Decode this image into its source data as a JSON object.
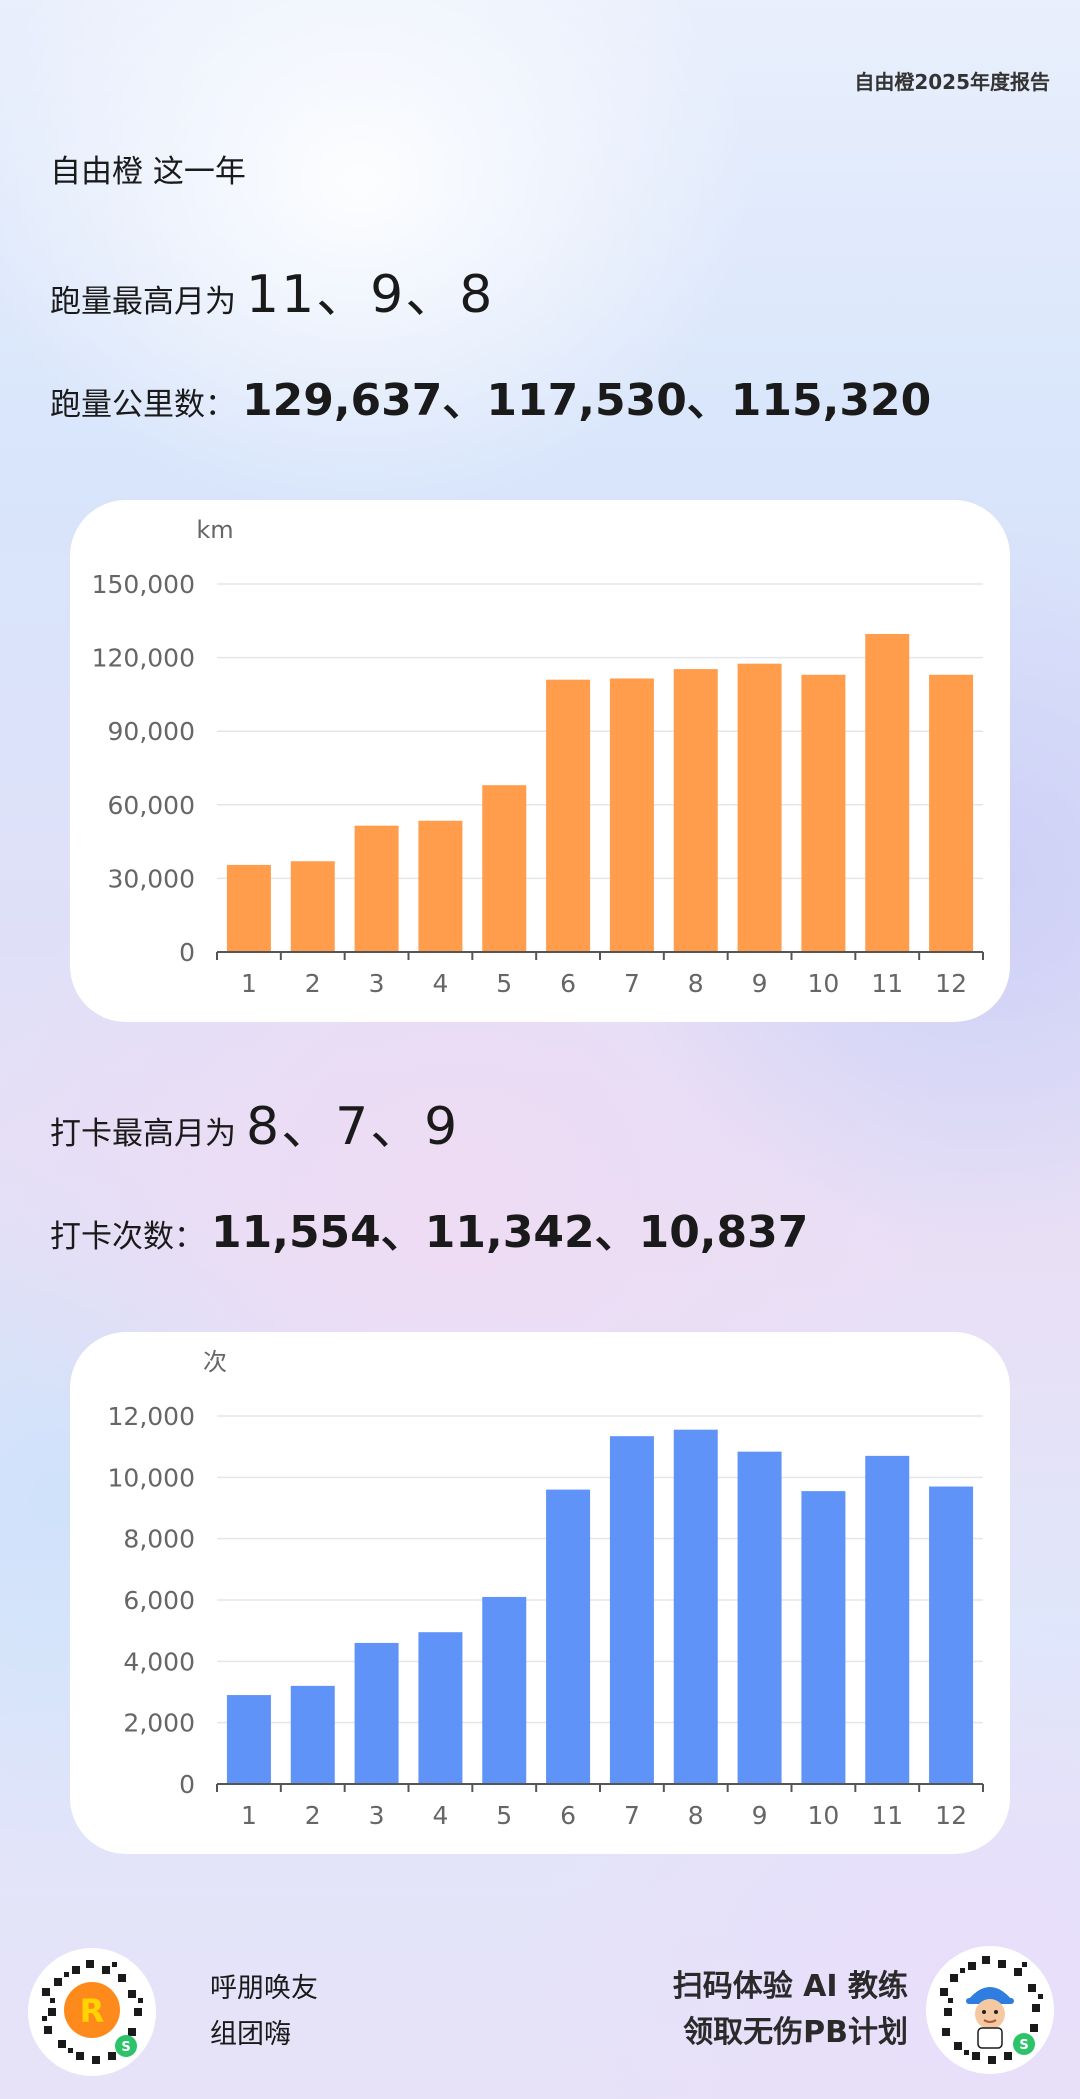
{
  "header": {
    "report_label": "自由橙2025年度报告",
    "intro": "自由橙 这一年"
  },
  "running": {
    "top_months_label": "跑量最高月为",
    "top_months_value": "11、9、8",
    "km_label": "跑量公里数：",
    "km_value": "129,637、117,530、115,320"
  },
  "checkin": {
    "top_months_label": "打卡最高月为",
    "top_months_value": "8、7、9",
    "count_label": "打卡次数：",
    "count_value": "11,554、11,342、10,837"
  },
  "chart_data": [
    {
      "type": "bar",
      "unit": "km",
      "categories": [
        "1",
        "2",
        "3",
        "4",
        "5",
        "6",
        "7",
        "8",
        "9",
        "10",
        "11",
        "12"
      ],
      "values": [
        35500,
        37000,
        51500,
        53500,
        68000,
        111000,
        111500,
        115320,
        117530,
        113000,
        129637,
        113000
      ],
      "ylim": [
        0,
        150000
      ],
      "yticks": [
        0,
        30000,
        60000,
        90000,
        120000,
        150000
      ],
      "ytick_labels": [
        "0",
        "30,000",
        "60,000",
        "90,000",
        "120,000",
        "150,000"
      ],
      "color": "#ff9d4d",
      "grid": true
    },
    {
      "type": "bar",
      "unit": "次",
      "categories": [
        "1",
        "2",
        "3",
        "4",
        "5",
        "6",
        "7",
        "8",
        "9",
        "10",
        "11",
        "12"
      ],
      "values": [
        2900,
        3200,
        4600,
        4950,
        6100,
        9600,
        11342,
        11554,
        10837,
        9550,
        10700,
        9700
      ],
      "ylim": [
        0,
        12000
      ],
      "yticks": [
        0,
        2000,
        4000,
        6000,
        8000,
        10000,
        12000
      ],
      "ytick_labels": [
        "0",
        "2,000",
        "4,000",
        "6,000",
        "8,000",
        "10,000",
        "12,000"
      ],
      "color": "#5f93f7",
      "grid": true
    }
  ],
  "footer": {
    "invite_line1": "呼朋唤友",
    "invite_line2": "组团嗨",
    "promo_line1": "扫码体验 AI 教练",
    "promo_line2": "领取无伤PB计划",
    "left_qr_icon": "app-logo-qr-icon",
    "right_qr_icon": "coach-avatar-qr-icon"
  }
}
